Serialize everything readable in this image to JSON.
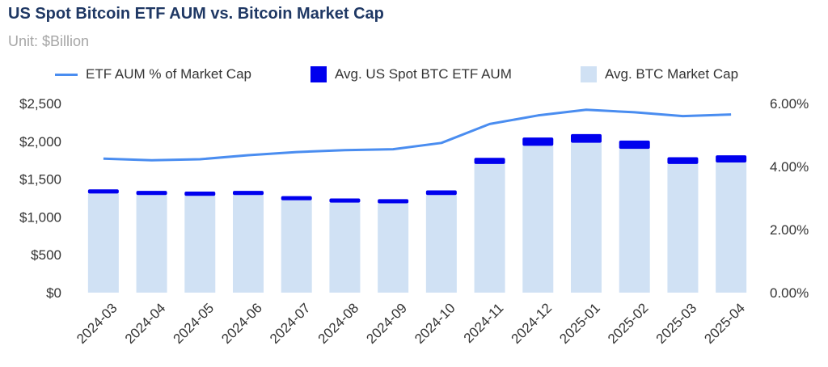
{
  "colors": {
    "aum_bar": "#0000ee",
    "mcap_bar": "#d0e1f4",
    "pct_line": "#4a8df0",
    "title": "#1f3864",
    "subtitle": "#a6a6a6",
    "text": "#333333"
  },
  "chart_data": {
    "type": "bar",
    "title": "US Spot Bitcoin ETF AUM vs. Bitcoin Market Cap",
    "subtitle": "Unit: $Billion",
    "stacked": true,
    "categories": [
      "2024-03",
      "2024-04",
      "2024-05",
      "2024-06",
      "2024-07",
      "2024-08",
      "2024-09",
      "2024-10",
      "2024-11",
      "2024-12",
      "2025-01",
      "2025-02",
      "2025-03",
      "2025-04"
    ],
    "series": [
      {
        "name": "Avg. BTC Market Cap",
        "kind": "bar",
        "axis": "left",
        "values": [
          1310,
          1290,
          1280,
          1290,
          1220,
          1190,
          1180,
          1290,
          1700,
          1940,
          1980,
          1900,
          1700,
          1720
        ]
      },
      {
        "name": "Avg. US Spot BTC ETF AUM",
        "kind": "bar",
        "axis": "left",
        "values": [
          55,
          55,
          55,
          55,
          55,
          55,
          55,
          62,
          82,
          110,
          115,
          110,
          90,
          95
        ]
      },
      {
        "name": "ETF AUM % of Market Cap",
        "kind": "line",
        "axis": "right",
        "values": [
          4.25,
          4.2,
          4.23,
          4.36,
          4.46,
          4.52,
          4.55,
          4.75,
          5.35,
          5.62,
          5.8,
          5.72,
          5.6,
          5.65
        ]
      }
    ],
    "y_left": {
      "min": 0,
      "max": 2500,
      "ticks": [
        "$0",
        "$500",
        "$1,000",
        "$1,500",
        "$2,000",
        "$2,500"
      ]
    },
    "y_right": {
      "min": 0,
      "max": 6,
      "ticks": [
        "0.00%",
        "2.00%",
        "4.00%",
        "6.00%"
      ]
    },
    "legend": [
      {
        "label": "ETF AUM % of Market Cap",
        "marker": "line"
      },
      {
        "label": "Avg. US Spot BTC ETF AUM",
        "marker": "box-dark"
      },
      {
        "label": "Avg. BTC Market Cap",
        "marker": "box-light"
      }
    ],
    "legend_position": "top"
  }
}
